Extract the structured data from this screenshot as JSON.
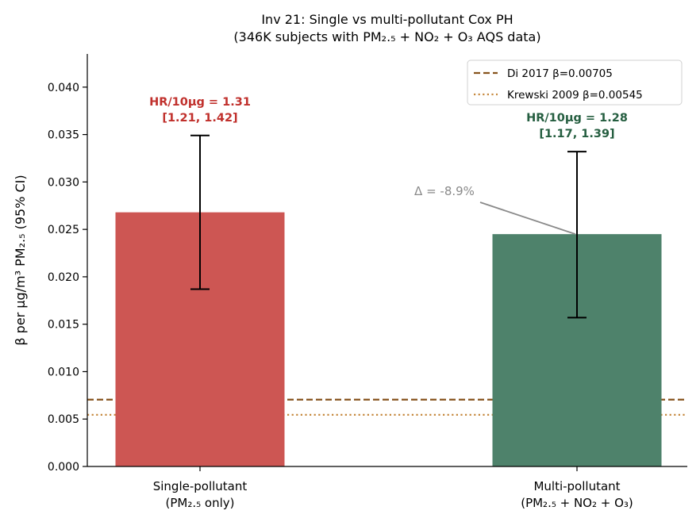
{
  "chart_data": {
    "type": "bar",
    "title": "Inv 21: Single vs multi-pollutant Cox PH",
    "subtitle": "(346K subjects with PM₂.₅ + NO₂ + O₃ AQS data)",
    "xlabel": "",
    "ylabel": "β per μg/m³ PM₂.₅ (95% CI)",
    "ylim": [
      0,
      0.0435
    ],
    "yticks": [
      0.0,
      0.005,
      0.01,
      0.015,
      0.02,
      0.025,
      0.03,
      0.035,
      0.04
    ],
    "ytick_labels": [
      "0.000",
      "0.005",
      "0.010",
      "0.015",
      "0.020",
      "0.025",
      "0.030",
      "0.035",
      "0.040"
    ],
    "grid": false,
    "bars": [
      {
        "category_line1": "Single-pollutant",
        "category_line2": "(PM₂.₅ only)",
        "value": 0.0268,
        "ci_low": 0.0187,
        "ci_high": 0.0349,
        "color": "#cd5653",
        "label_color": "#c0302c",
        "hr_line1": "HR/10μg = 1.31",
        "hr_line2": "[1.21, 1.42]"
      },
      {
        "category_line1": "Multi-pollutant",
        "category_line2": "(PM₂.₅ + NO₂ + O₃)",
        "value": 0.0245,
        "ci_low": 0.0157,
        "ci_high": 0.0332,
        "color": "#4e826b",
        "label_color": "#255e40",
        "hr_line1": "HR/10μg = 1.28",
        "hr_line2": "[1.17, 1.39]"
      }
    ],
    "reference_lines": [
      {
        "name": "Di 2017 β=0.00705",
        "value": 0.00705,
        "color": "#86531d",
        "style": "dashed"
      },
      {
        "name": "Krewski 2009 β=0.00545",
        "value": 0.00545,
        "color": "#c6893f",
        "style": "dotted"
      }
    ],
    "annotation": {
      "text": "Δ = -8.9%",
      "color": "#8a8a8a"
    },
    "legend": {
      "placement": "top-right"
    }
  }
}
